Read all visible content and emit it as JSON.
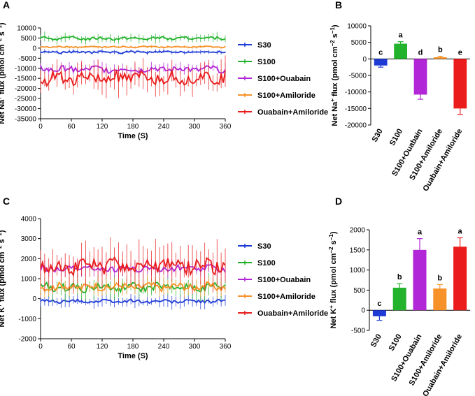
{
  "colors": {
    "S30": "#1f3bd6",
    "S100": "#22b22b",
    "S100+Ouabain": "#b126d6",
    "S100+Amiloride": "#f7922a",
    "Ouabain+Amiloride": "#ea1c1c"
  },
  "chart_data": [
    {
      "id": "A",
      "panel_label": "A",
      "type": "line",
      "xlabel": "Time (S)",
      "ylabel_parts": [
        "Net Na",
        "+",
        " flux (pmol cm",
        "−2",
        " s",
        "−1",
        ")"
      ],
      "xlim": [
        0,
        360
      ],
      "ylim": [
        -35000,
        10000
      ],
      "xticks": [
        0,
        60,
        120,
        180,
        240,
        300,
        360
      ],
      "yticks": [
        10000,
        5000,
        0,
        -5000,
        -10000,
        -15000,
        -20000,
        -25000,
        -30000,
        -35000
      ],
      "legend_position": "right",
      "series": [
        {
          "name": "S30",
          "mean": -2000,
          "amp": 500,
          "err": 800
        },
        {
          "name": "S100",
          "mean": 4800,
          "amp": 700,
          "err": 1800
        },
        {
          "name": "S100+Ouabain",
          "mean": -10500,
          "amp": 1500,
          "err": 2500
        },
        {
          "name": "S100+Amiloride",
          "mean": 600,
          "amp": 300,
          "err": 600
        },
        {
          "name": "Ouabain+Amiloride",
          "mean": -15000,
          "amp": 3000,
          "err": 6000
        }
      ]
    },
    {
      "id": "B",
      "panel_label": "B",
      "type": "bar",
      "ylabel_parts": [
        "Net Na",
        "+",
        " flux (pmol cm",
        "−2",
        " s",
        "−1",
        ")"
      ],
      "ylim": [
        -20000,
        10000
      ],
      "yticks": [
        10000,
        5000,
        0,
        -5000,
        -10000,
        -15000,
        -20000
      ],
      "categories": [
        "S30",
        "S100",
        "S100+Ouabain",
        "S100+Amiloride",
        "Ouabain+Amiloride"
      ],
      "values": [
        -2000,
        4600,
        -10800,
        500,
        -15000
      ],
      "errors": [
        500,
        600,
        1400,
        300,
        1800
      ],
      "letters": [
        "c",
        "a",
        "d",
        "b",
        "e"
      ]
    },
    {
      "id": "C",
      "panel_label": "C",
      "type": "line",
      "xlabel": "Time (S)",
      "ylabel_parts": [
        "Net K",
        "+",
        " flux (pmol cm",
        "−2",
        " s",
        "−1",
        ")"
      ],
      "xlim": [
        0,
        360
      ],
      "ylim": [
        -2000,
        4000
      ],
      "xticks": [
        0,
        60,
        120,
        180,
        240,
        300,
        360
      ],
      "yticks": [
        4000,
        3000,
        2000,
        1000,
        0,
        -1000,
        -2000
      ],
      "legend_position": "right",
      "series": [
        {
          "name": "S30",
          "mean": -130,
          "amp": 80,
          "err": 250
        },
        {
          "name": "S100",
          "mean": 560,
          "amp": 200,
          "err": 450
        },
        {
          "name": "S100+Ouabain",
          "mean": 1500,
          "amp": 150,
          "err": 350
        },
        {
          "name": "S100+Amiloride",
          "mean": 600,
          "amp": 180,
          "err": 350
        },
        {
          "name": "Ouabain+Amiloride",
          "mean": 1650,
          "amp": 350,
          "err": 900
        }
      ]
    },
    {
      "id": "D",
      "panel_label": "D",
      "type": "bar",
      "ylabel_parts": [
        "Net K",
        "+",
        " flux (pmol cm",
        "−2",
        " s",
        "−1",
        ")"
      ],
      "ylim": [
        -500,
        2000
      ],
      "yticks": [
        2000,
        1500,
        1000,
        500,
        0,
        -500
      ],
      "categories": [
        "S30",
        "S100",
        "S100+Ouabain",
        "S100+Amiloride",
        "Ouabain+Amiloride"
      ],
      "values": [
        -150,
        560,
        1500,
        540,
        1580
      ],
      "errors": [
        100,
        100,
        280,
        100,
        220
      ],
      "letters": [
        "c",
        "b",
        "a",
        "b",
        "a"
      ]
    }
  ]
}
